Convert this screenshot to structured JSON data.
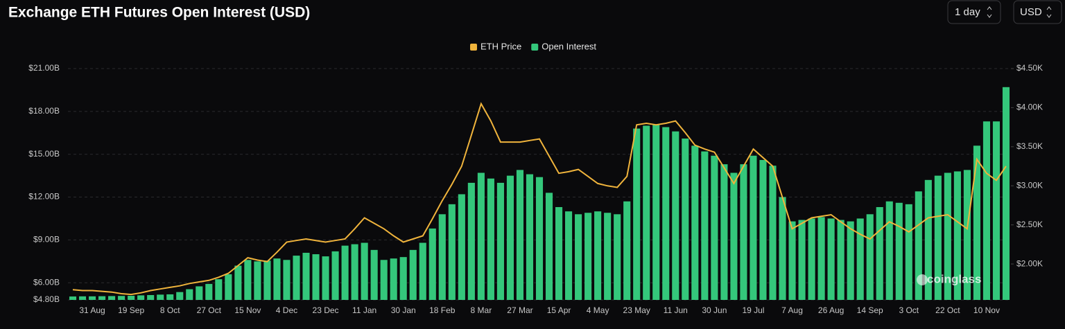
{
  "controls": {
    "interval": "1 day",
    "currency": "USD"
  },
  "chart_data": {
    "type": "bar-line",
    "title": "Exchange ETH Futures Open Interest (USD)",
    "watermark": "coinglass",
    "categories": [
      null,
      null,
      "31 Aug",
      null,
      null,
      null,
      "19 Sep",
      null,
      null,
      null,
      "8 Oct",
      null,
      null,
      null,
      "27 Oct",
      null,
      null,
      null,
      "15 Nov",
      null,
      null,
      null,
      "4 Dec",
      null,
      null,
      null,
      "23 Dec",
      null,
      null,
      null,
      "11 Jan",
      null,
      null,
      null,
      "30 Jan",
      null,
      null,
      null,
      "18 Feb",
      null,
      null,
      null,
      "8 Mar",
      null,
      null,
      null,
      "27 Mar",
      null,
      null,
      null,
      "15 Apr",
      null,
      null,
      null,
      "4 May",
      null,
      null,
      null,
      "23 May",
      null,
      null,
      null,
      "11 Jun",
      null,
      null,
      null,
      "30 Jun",
      null,
      null,
      null,
      "19 Jul",
      null,
      null,
      null,
      "7 Aug",
      null,
      null,
      null,
      "26 Aug",
      null,
      null,
      null,
      "14 Sep",
      null,
      null,
      null,
      "3 Oct",
      null,
      null,
      null,
      "22 Oct",
      null,
      null,
      null,
      "10 Nov",
      null,
      null
    ],
    "series": [
      {
        "name": "ETH Price",
        "color": "#f0b43c",
        "axis": "y2",
        "kind": "line",
        "values": [
          1.67,
          1.66,
          1.66,
          1.65,
          1.64,
          1.62,
          1.61,
          1.63,
          1.66,
          1.68,
          1.7,
          1.72,
          1.75,
          1.77,
          1.79,
          1.83,
          1.88,
          1.98,
          2.08,
          2.05,
          2.03,
          2.15,
          2.28,
          2.3,
          2.32,
          2.3,
          2.28,
          2.3,
          2.32,
          2.45,
          2.59,
          2.52,
          2.45,
          2.36,
          2.28,
          2.32,
          2.36,
          2.58,
          2.81,
          3.02,
          3.25,
          3.65,
          4.05,
          3.83,
          3.56,
          3.56,
          3.56,
          3.58,
          3.6,
          3.38,
          3.16,
          3.18,
          3.21,
          3.12,
          3.03,
          3.0,
          2.98,
          3.12,
          3.78,
          3.8,
          3.78,
          3.8,
          3.83,
          3.68,
          3.52,
          3.47,
          3.43,
          3.23,
          3.03,
          3.25,
          3.47,
          3.36,
          3.25,
          2.85,
          2.45,
          2.52,
          2.59,
          2.61,
          2.63,
          2.54,
          2.45,
          2.38,
          2.32,
          2.43,
          2.54,
          2.48,
          2.41,
          2.5,
          2.59,
          2.61,
          2.63,
          2.54,
          2.45,
          3.34,
          3.16,
          3.07,
          3.25
        ]
      },
      {
        "name": "Open Interest",
        "color": "#34c77b",
        "kind": "bar",
        "values": [
          5.04,
          5.05,
          5.05,
          5.06,
          5.07,
          5.08,
          5.09,
          5.12,
          5.14,
          5.17,
          5.19,
          5.35,
          5.55,
          5.75,
          5.92,
          6.25,
          6.6,
          7.2,
          7.6,
          7.5,
          7.55,
          7.7,
          7.6,
          7.9,
          8.1,
          8.0,
          7.85,
          8.2,
          8.6,
          8.7,
          8.8,
          8.3,
          7.6,
          7.7,
          7.8,
          8.3,
          8.8,
          9.8,
          10.8,
          11.5,
          12.2,
          13.0,
          13.7,
          13.3,
          13.0,
          13.5,
          13.9,
          13.6,
          13.4,
          12.3,
          11.3,
          11.0,
          10.8,
          10.9,
          11.0,
          10.9,
          10.8,
          11.7,
          16.8,
          17.0,
          17.1,
          16.9,
          16.6,
          16.1,
          15.6,
          15.2,
          14.9,
          14.3,
          13.7,
          14.3,
          14.9,
          14.6,
          14.2,
          12.0,
          10.3,
          10.4,
          10.5,
          10.6,
          10.5,
          10.4,
          10.3,
          10.5,
          10.8,
          11.3,
          11.7,
          11.6,
          11.5,
          12.4,
          13.2,
          13.5,
          13.7,
          13.8,
          13.9,
          15.6,
          17.3,
          17.3,
          19.7
        ]
      }
    ],
    "ylim": [
      4.8,
      21
    ],
    "yticks": [
      {
        "value": 4.8,
        "label": "$4.80B"
      },
      {
        "value": 6,
        "label": "$6.00B"
      },
      {
        "value": 9,
        "label": "$9.00B"
      },
      {
        "value": 12,
        "label": "$12.00B"
      },
      {
        "value": 15,
        "label": "$15.00B"
      },
      {
        "value": 18,
        "label": "$18.00B"
      },
      {
        "value": 21,
        "label": "$21.00B"
      }
    ],
    "y2lim": [
      1.54,
      4.5
    ],
    "y2ticks": [
      {
        "value": 2,
        "label": "$2.00K"
      },
      {
        "value": 2.5,
        "label": "$2.50K"
      },
      {
        "value": 3,
        "label": "$3.00K"
      },
      {
        "value": 3.5,
        "label": "$3.50K"
      },
      {
        "value": 4,
        "label": "$4.00K"
      },
      {
        "value": 4.5,
        "label": "$4.50K"
      }
    ],
    "grid": true,
    "legend": "top"
  }
}
